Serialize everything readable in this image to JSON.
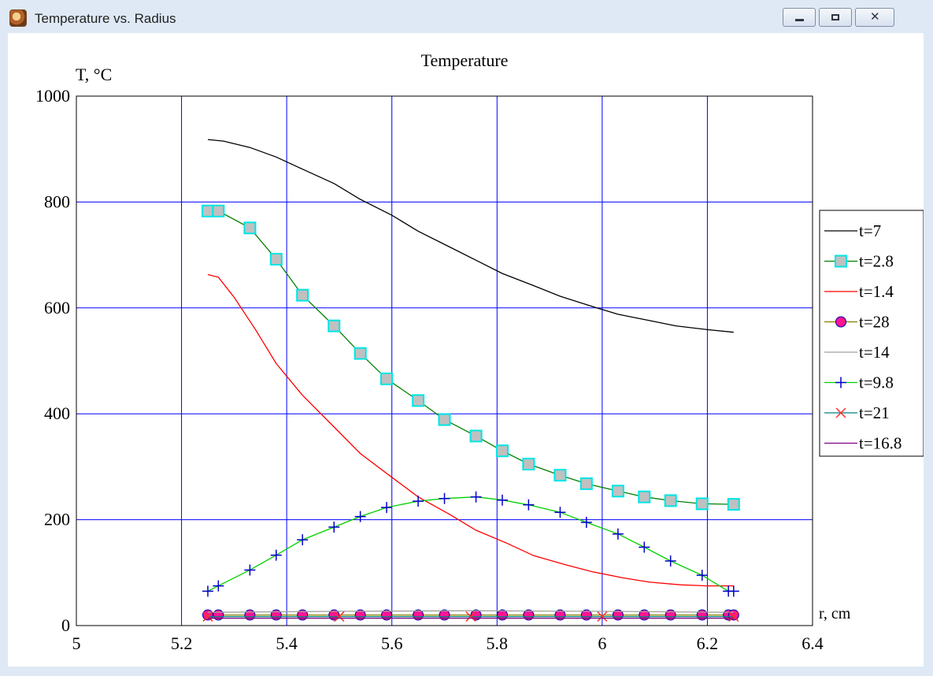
{
  "window": {
    "title": "Temperature vs. Radius"
  },
  "icons": {
    "app": "app-logo-icon",
    "minimize": "minimize-icon",
    "maximize": "maximize-icon",
    "close": "close-icon"
  },
  "chart_data": {
    "type": "line",
    "title": "Temperature",
    "xlabel": "r, cm",
    "ylabel": "T, °C",
    "xlim": [
      5,
      6.4
    ],
    "ylim": [
      0,
      1000
    ],
    "x_ticks": [
      5,
      5.2,
      5.4,
      5.6,
      5.8,
      6,
      6.2,
      6.4
    ],
    "y_ticks": [
      0,
      200,
      400,
      600,
      800,
      1000
    ],
    "grid": true,
    "legend": "right",
    "colors": {
      "grid": "#0000ff",
      "axis": "#000000"
    },
    "series": [
      {
        "name": "t=7",
        "color": "#000000",
        "marker": "none",
        "x": [
          5.25,
          5.28,
          5.33,
          5.38,
          5.43,
          5.49,
          5.54,
          5.6,
          5.65,
          5.71,
          5.76,
          5.81,
          5.87,
          5.92,
          5.98,
          6.03,
          6.09,
          6.14,
          6.2,
          6.25
        ],
        "y": [
          918,
          915,
          903,
          885,
          862,
          835,
          805,
          775,
          745,
          715,
          690,
          665,
          642,
          622,
          603,
          588,
          576,
          566,
          559,
          554
        ]
      },
      {
        "name": "t=2.8",
        "color": "#008000",
        "marker": "square",
        "marker_fill": "#c0c0c0",
        "marker_edge": "#00e5e5",
        "x": [
          5.25,
          5.27,
          5.33,
          5.38,
          5.43,
          5.49,
          5.54,
          5.59,
          5.65,
          5.7,
          5.76,
          5.81,
          5.86,
          5.92,
          5.97,
          6.03,
          6.08,
          6.13,
          6.19,
          6.25
        ],
        "y": [
          783,
          783,
          751,
          692,
          624,
          566,
          514,
          466,
          425,
          389,
          358,
          330,
          305,
          284,
          268,
          254,
          243,
          236,
          230,
          229
        ]
      },
      {
        "name": "t=1.4",
        "color": "#ff0000",
        "marker": "none",
        "x": [
          5.25,
          5.27,
          5.3,
          5.34,
          5.38,
          5.43,
          5.49,
          5.54,
          5.6,
          5.65,
          5.71,
          5.76,
          5.82,
          5.87,
          5.93,
          5.98,
          6.04,
          6.09,
          6.15,
          6.2,
          6.25
        ],
        "y": [
          663,
          658,
          620,
          560,
          495,
          435,
          375,
          325,
          280,
          243,
          210,
          180,
          155,
          132,
          115,
          102,
          90,
          82,
          77,
          75,
          75
        ]
      },
      {
        "name": "t=28",
        "color": "#808000",
        "marker": "circle",
        "marker_fill": "#ff1493",
        "marker_edge": "#0000aa",
        "x": [
          5.25,
          5.27,
          5.33,
          5.38,
          5.43,
          5.49,
          5.54,
          5.59,
          5.65,
          5.7,
          5.76,
          5.81,
          5.86,
          5.92,
          5.97,
          6.03,
          6.08,
          6.13,
          6.19,
          6.24,
          6.25
        ],
        "y": [
          20,
          20,
          20,
          20,
          20,
          20,
          20,
          20,
          20,
          20,
          20,
          20,
          20,
          20,
          20,
          20,
          20,
          20,
          20,
          20,
          20
        ]
      },
      {
        "name": "t=14",
        "color": "#a0a0a0",
        "marker": "none",
        "x": [
          5.25,
          5.5,
          5.75,
          6.0,
          6.25
        ],
        "y": [
          25,
          27,
          28,
          27,
          25
        ]
      },
      {
        "name": "t=9.8",
        "color": "#00d000",
        "marker": "plus",
        "marker_edge": "#0000cc",
        "x": [
          5.25,
          5.27,
          5.33,
          5.38,
          5.43,
          5.49,
          5.54,
          5.59,
          5.65,
          5.7,
          5.76,
          5.81,
          5.86,
          5.92,
          5.97,
          6.03,
          6.08,
          6.13,
          6.19,
          6.24,
          6.25
        ],
        "y": [
          65,
          75,
          105,
          133,
          162,
          186,
          206,
          223,
          235,
          240,
          243,
          237,
          228,
          214,
          195,
          173,
          148,
          122,
          95,
          65,
          65
        ]
      },
      {
        "name": "t=21",
        "color": "#008080",
        "marker": "x",
        "marker_edge": "#ff3030",
        "x": [
          5.25,
          5.5,
          5.75,
          6.0,
          6.25
        ],
        "y": [
          17,
          17,
          17,
          17,
          17
        ]
      },
      {
        "name": "t=16.8",
        "color": "#800080",
        "marker": "none",
        "x": [
          5.25,
          5.5,
          5.75,
          6.0,
          6.25
        ],
        "y": [
          14,
          14,
          14,
          14,
          14
        ]
      }
    ]
  }
}
